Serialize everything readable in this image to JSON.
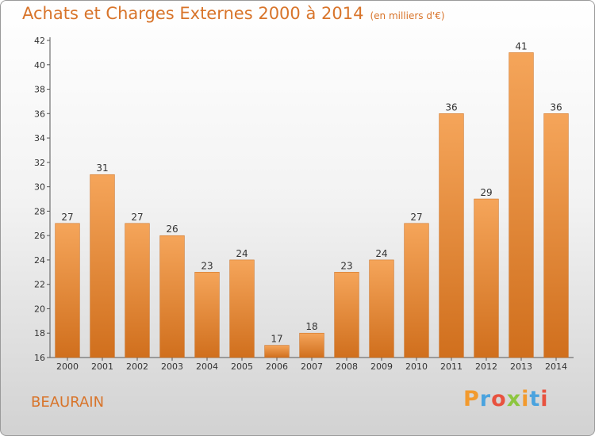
{
  "title": "Achats et Charges Externes 2000 à 2014",
  "subtitle": "(en milliers d'€)",
  "location": "BEAURAIN",
  "logo": {
    "letters": [
      "P",
      "r",
      "o",
      "x",
      "i",
      "t",
      "i"
    ],
    "colors": [
      "#f29a2e",
      "#4aa3df",
      "#e8523f",
      "#8dc63f",
      "#f29a2e",
      "#4aa3df",
      "#e8523f"
    ]
  },
  "colors": {
    "bar_top": "#f5a55a",
    "bar_bottom": "#d06f1d",
    "title": "#d8742a"
  },
  "chart_data": {
    "type": "bar",
    "title": "Achats et Charges Externes 2000 à 2014",
    "subtitle": "(en milliers d'€)",
    "categories": [
      "2000",
      "2001",
      "2002",
      "2003",
      "2004",
      "2005",
      "2006",
      "2007",
      "2008",
      "2009",
      "2010",
      "2011",
      "2012",
      "2013",
      "2014"
    ],
    "values": [
      27,
      31,
      27,
      26,
      23,
      24,
      17,
      18,
      23,
      24,
      27,
      36,
      29,
      41,
      36
    ],
    "yticks": [
      16,
      18,
      20,
      22,
      24,
      26,
      28,
      30,
      32,
      34,
      36,
      38,
      40,
      42
    ],
    "ylim": [
      16,
      42
    ],
    "grid": false,
    "legend": "none"
  }
}
